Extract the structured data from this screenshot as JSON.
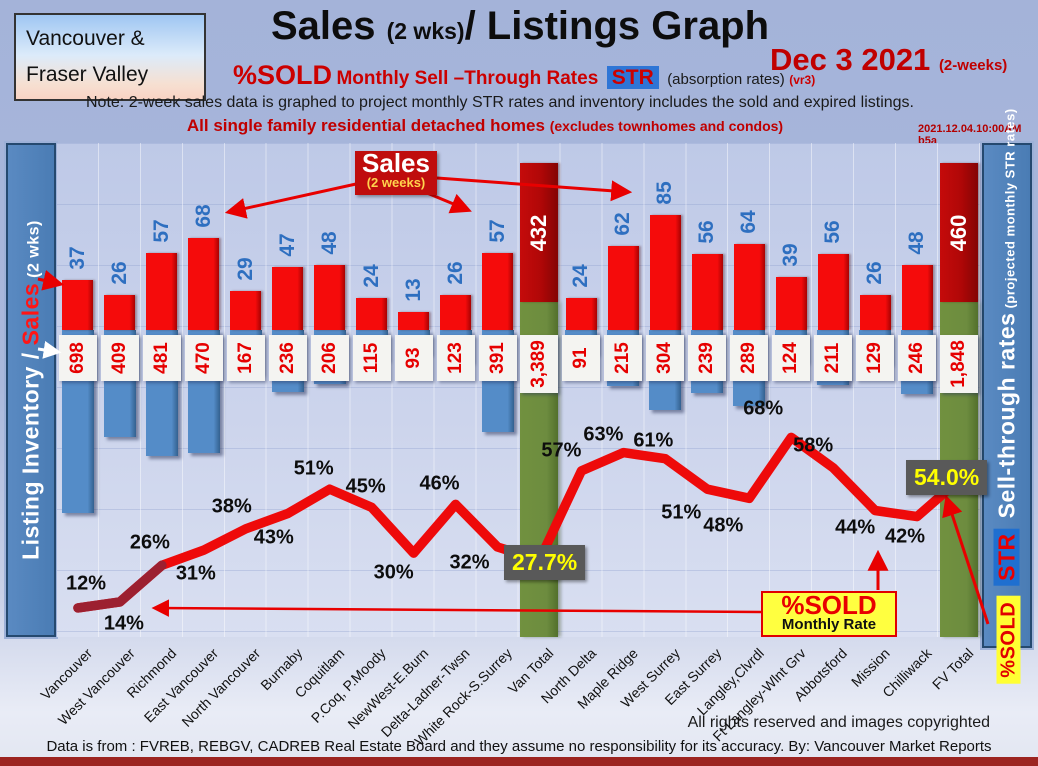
{
  "header": {
    "logo_line1": "Vancouver &",
    "logo_line2": "Fraser Valley",
    "title": "Sales",
    "title_paren": "(2 wks)",
    "title_rest": "/ Listings Graph",
    "date": "Dec  3  2021",
    "date_paren": "(2-weeks)",
    "pct_sold": "%SOLD",
    "rates_text": "Monthly Sell –Through Rates",
    "str_badge": "STR",
    "absorption": "(absorption rates)",
    "version": "(vr3)",
    "note": "Note: 2-week sales data is graphed to project monthly STR rates and inventory includes the sold and expired listings.",
    "subnote": "All single family residential detached homes",
    "subnote_paren": "(excludes townhomes and condos)",
    "timestamp": "2021.12.04.10:00AM b5a"
  },
  "left_axis": {
    "part1": "Listing Inventory / ",
    "part2": "Sales",
    "part3": " (2  wks)"
  },
  "right_axis": {
    "title": "Sell-through rates",
    "paren": " (projected monthly STR rates)",
    "str_badge": "STR",
    "sold_badge": "%SOLD"
  },
  "callouts": {
    "sales_title": "Sales",
    "sales_sub": "(2 weeks)",
    "sold_title": "%SOLD",
    "sold_sub": "Monthly Rate",
    "van_total_rate": "27.7%",
    "fv_total_rate": "54.0%"
  },
  "footer": {
    "rights": "All rights reserved and  images copyrighted",
    "source": "Data is from : FVREB, REBGV, CADREB Real Estate Board and they assume no responsibility for its accuracy. By: Vancouver Market Reports"
  },
  "colors": {
    "sales_bar": "#ee0404",
    "inventory_bar": "#4f86c6",
    "total_sales_bar": "#a50b0b",
    "total_inventory_bar": "#6d8c3f",
    "line": "#ee0a0a",
    "line_start": "#9c2030",
    "rate_callout_bg": "#595959",
    "rate_callout_text": "#ffff00"
  },
  "chart_data": {
    "type": "bar+line combo (sales bars up, inventory bars down, STR line)",
    "categories": [
      "Vancouver",
      "West Vancouver",
      "Richmond",
      "East Vancouver",
      "North Vancouver",
      "Burnaby",
      "Coquitlam",
      "P.Coq, P.Moody",
      "NewWest-E.Burn",
      "Delta-Ladner-Twsn",
      "White Rock-S.Surrey",
      "Van Total",
      "North Delta",
      "Maple Ridge",
      "West Surrey",
      "East Surrey",
      "Langley,Clvrdl",
      "Ft Langley-Wlnt Grv",
      "Abbotsford",
      "Mission",
      "Chilliwack",
      "FV Total"
    ],
    "series": [
      {
        "name": "Sales (2 weeks)",
        "type": "bar",
        "color": "#ee0404",
        "values": [
          37,
          26,
          57,
          68,
          29,
          47,
          48,
          24,
          13,
          26,
          57,
          432,
          24,
          62,
          85,
          56,
          64,
          39,
          56,
          26,
          48,
          460
        ]
      },
      {
        "name": "Listing Inventory (sold and expired included)",
        "type": "bar-downward",
        "color": "#4f86c6",
        "values": [
          698,
          409,
          481,
          470,
          167,
          236,
          206,
          115,
          93,
          123,
          391,
          3389,
          91,
          215,
          304,
          239,
          289,
          124,
          211,
          129,
          246,
          1848
        ]
      },
      {
        "name": "%SOLD Monthly Sell-Through Rate (STR)",
        "type": "line",
        "color": "#ee0a0a",
        "values": [
          12,
          14,
          26,
          31,
          38,
          43,
          51,
          45,
          30,
          46,
          32,
          27.7,
          57,
          63,
          61,
          51,
          48,
          68,
          58,
          44,
          42,
          54.0
        ]
      }
    ],
    "sales_labels": [
      "37",
      "26",
      "57",
      "68",
      "29",
      "47",
      "48",
      "24",
      "13",
      "26",
      "57",
      "432",
      "24",
      "62",
      "85",
      "56",
      "64",
      "39",
      "56",
      "26",
      "48",
      "460"
    ],
    "inventory_labels": [
      "698",
      "409",
      "481",
      "470",
      "167",
      "236",
      "206",
      "115",
      "93",
      "123",
      "391",
      "3,389",
      "91",
      "215",
      "304",
      "239",
      "289",
      "124",
      "211",
      "129",
      "246",
      "1,848"
    ],
    "pct_labels": [
      "12%",
      "14%",
      "26%",
      "31%",
      "38%",
      "43%",
      "51%",
      "45%",
      "30%",
      "46%",
      "32%",
      "27.7%",
      "57%",
      "63%",
      "61%",
      "51%",
      "48%",
      "68%",
      "58%",
      "44%",
      "42%",
      "54.0%"
    ],
    "pct_label_side": [
      "above",
      "below",
      "above",
      "below",
      "above",
      "below",
      "above",
      "above",
      "below",
      "above",
      "below",
      "box",
      "above",
      "above",
      "above",
      "below",
      "below",
      "above",
      "above",
      "below",
      "below",
      "box"
    ],
    "total_columns": [
      11,
      21
    ],
    "y_axis_left": "Listing Inventory / Sales (2 wks)",
    "y_axis_right": "Sell-through rates (projected monthly STR rates)",
    "grid": "faint vertical column grid + faint horizontal lines",
    "legend_notes": "Total columns (Van Total, FV Total) drawn as dark-red sales bar over green inventory column"
  }
}
